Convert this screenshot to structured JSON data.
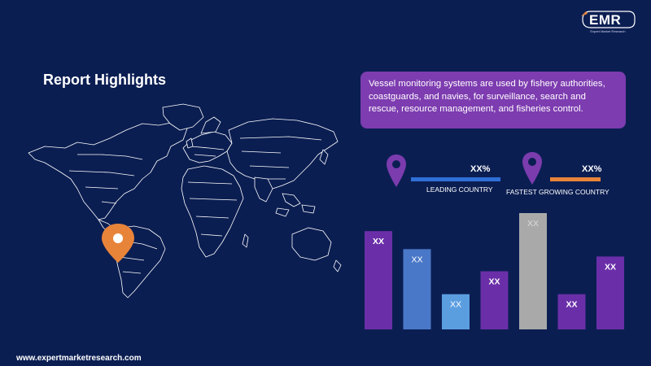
{
  "brand": {
    "logo_text": "EMR",
    "tagline": "Expert Market Research"
  },
  "title": "Report Highlights",
  "description": "Vessel monitoring systems are used by fishery authorities, coastguards, and navies, for surveillance, search and rescue, resource management, and fisheries control.",
  "stats": [
    {
      "value": "XX%",
      "label": "LEADING COUNTRY",
      "color": "#2f6fd6"
    },
    {
      "value": "XX%",
      "label": "FASTEST GROWING COUNTRY",
      "color": "#e8843a"
    }
  ],
  "chart_data": {
    "type": "bar",
    "title": "",
    "xlabel": "",
    "ylabel": "",
    "categories": [
      "",
      "",
      "",
      "",
      "",
      "",
      ""
    ],
    "values": [
      120,
      98,
      43,
      71,
      142,
      43,
      89
    ],
    "data_labels": [
      "XX",
      "XX",
      "XX",
      "XX",
      "XX",
      "XX",
      "XX"
    ],
    "colors": [
      "#6a2fa8",
      "#4a78c8",
      "#5b9ee0",
      "#6a2fa8",
      "#a9a9a9",
      "#6a2fa8",
      "#6a2fa8"
    ],
    "ylim": [
      0,
      142
    ]
  },
  "colors": {
    "background": "#0b1e52",
    "accent_purple": "#7d3cb0",
    "pin_purple": "#7b3cae",
    "map_pin_orange": "#e8843a"
  },
  "footer": "www.expertmarketresearch.com"
}
